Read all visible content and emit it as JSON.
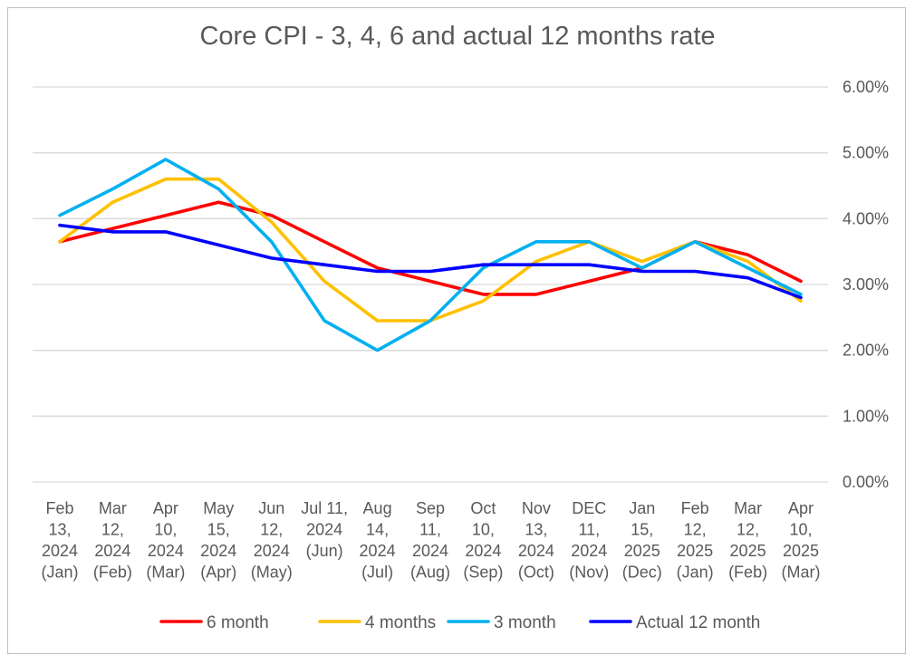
{
  "chart_data": {
    "type": "line",
    "title": "Core CPI - 3, 4, 6 and actual 12 months rate",
    "categories": [
      [
        "Feb",
        "13,",
        "2024",
        "(Jan)"
      ],
      [
        "Mar",
        "12,",
        "2024",
        "(Feb)"
      ],
      [
        "Apr",
        "10,",
        "2024",
        "(Mar)"
      ],
      [
        "May",
        "15,",
        "2024",
        "(Apr)"
      ],
      [
        "Jun",
        "12,",
        "2024",
        "(May)"
      ],
      [
        "Jul 11,",
        "2024",
        "(Jun)"
      ],
      [
        "Aug",
        "14,",
        "2024",
        "(Jul)"
      ],
      [
        "Sep",
        "11,",
        "2024",
        "(Aug)"
      ],
      [
        "Oct",
        "10,",
        "2024",
        "(Sep)"
      ],
      [
        "Nov",
        "13,",
        "2024",
        "(Oct)"
      ],
      [
        "DEC",
        "11,",
        "2024",
        "(Nov)"
      ],
      [
        "Jan",
        "15,",
        "2025",
        "(Dec)"
      ],
      [
        "Feb",
        "12,",
        "2025",
        "(Jan)"
      ],
      [
        "Mar",
        "12,",
        "2025",
        "(Feb)"
      ],
      [
        "Apr",
        "10,",
        "2025",
        "(Mar)"
      ]
    ],
    "y_ticks": [
      "0.00%",
      "1.00%",
      "2.00%",
      "3.00%",
      "4.00%",
      "5.00%",
      "6.00%"
    ],
    "ylim": [
      0,
      6
    ],
    "y_axis_side": "right",
    "grid": true,
    "legend_position": "bottom",
    "series": [
      {
        "name": "6 month",
        "color": "#ff0000",
        "values": [
          3.65,
          3.85,
          4.05,
          4.25,
          4.05,
          3.65,
          3.25,
          3.05,
          2.85,
          2.85,
          3.05,
          3.25,
          3.65,
          3.45,
          3.05
        ]
      },
      {
        "name": "4 months",
        "color": "#ffc000",
        "values": [
          3.65,
          4.25,
          4.6,
          4.6,
          3.95,
          3.05,
          2.45,
          2.45,
          2.75,
          3.35,
          3.65,
          3.35,
          3.65,
          3.35,
          2.75
        ]
      },
      {
        "name": "3 month",
        "color": "#00b0f0",
        "values": [
          4.05,
          4.45,
          4.9,
          4.45,
          3.65,
          2.45,
          2.0,
          2.45,
          3.25,
          3.65,
          3.65,
          3.25,
          3.65,
          3.25,
          2.85
        ]
      },
      {
        "name": "Actual 12 month",
        "color": "#0000ff",
        "values": [
          3.9,
          3.8,
          3.8,
          3.6,
          3.4,
          3.3,
          3.2,
          3.2,
          3.3,
          3.3,
          3.3,
          3.2,
          3.2,
          3.1,
          2.8
        ]
      }
    ]
  }
}
